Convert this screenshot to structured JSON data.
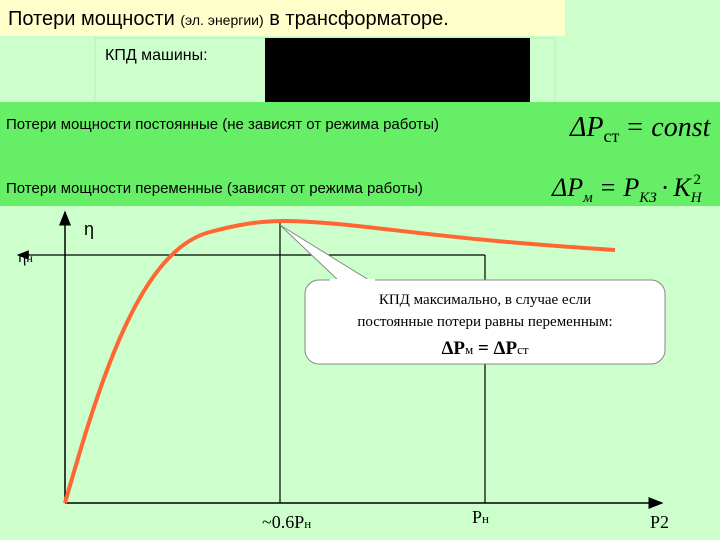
{
  "title": {
    "main": "Потери мощности",
    "note": "(эл. энергии)",
    "tail": "в трансформаторе."
  },
  "efficiency_box": {
    "label": "КПД машины:"
  },
  "constant_losses": {
    "text": "Потери мощности постоянные (не зависят от режима работы)",
    "formula": {
      "lhs": "ΔP",
      "lhs_sub": "ст",
      "rhs": "= const"
    }
  },
  "variable_losses": {
    "text": "Потери мощности переменные (зависят от режима работы)",
    "formula": {
      "lhs": "ΔP",
      "lhs_sub": "м",
      "eq": "=",
      "p": "P",
      "p_sub": "КЗ",
      "dot": "·",
      "k": "K",
      "k_sub": "Н",
      "k_sup": "2"
    }
  },
  "graph": {
    "y_axis_label": "η",
    "rated_efficiency": {
      "symbol": "η",
      "sub": "н"
    },
    "x_labels": {
      "optimum": {
        "text": "~0.6P",
        "sub": "н"
      },
      "rated": {
        "text": "P",
        "sub": "н"
      },
      "axis": {
        "text": "P",
        "sub": "2"
      }
    },
    "callout": {
      "lines": [
        "КПД максимально, в случае если",
        "постоянные потери равны переменным:"
      ],
      "formula": {
        "a": "ΔP",
        "a_sub": "м",
        "eq": " = ΔP",
        "b_sub": "ст"
      }
    }
  }
}
